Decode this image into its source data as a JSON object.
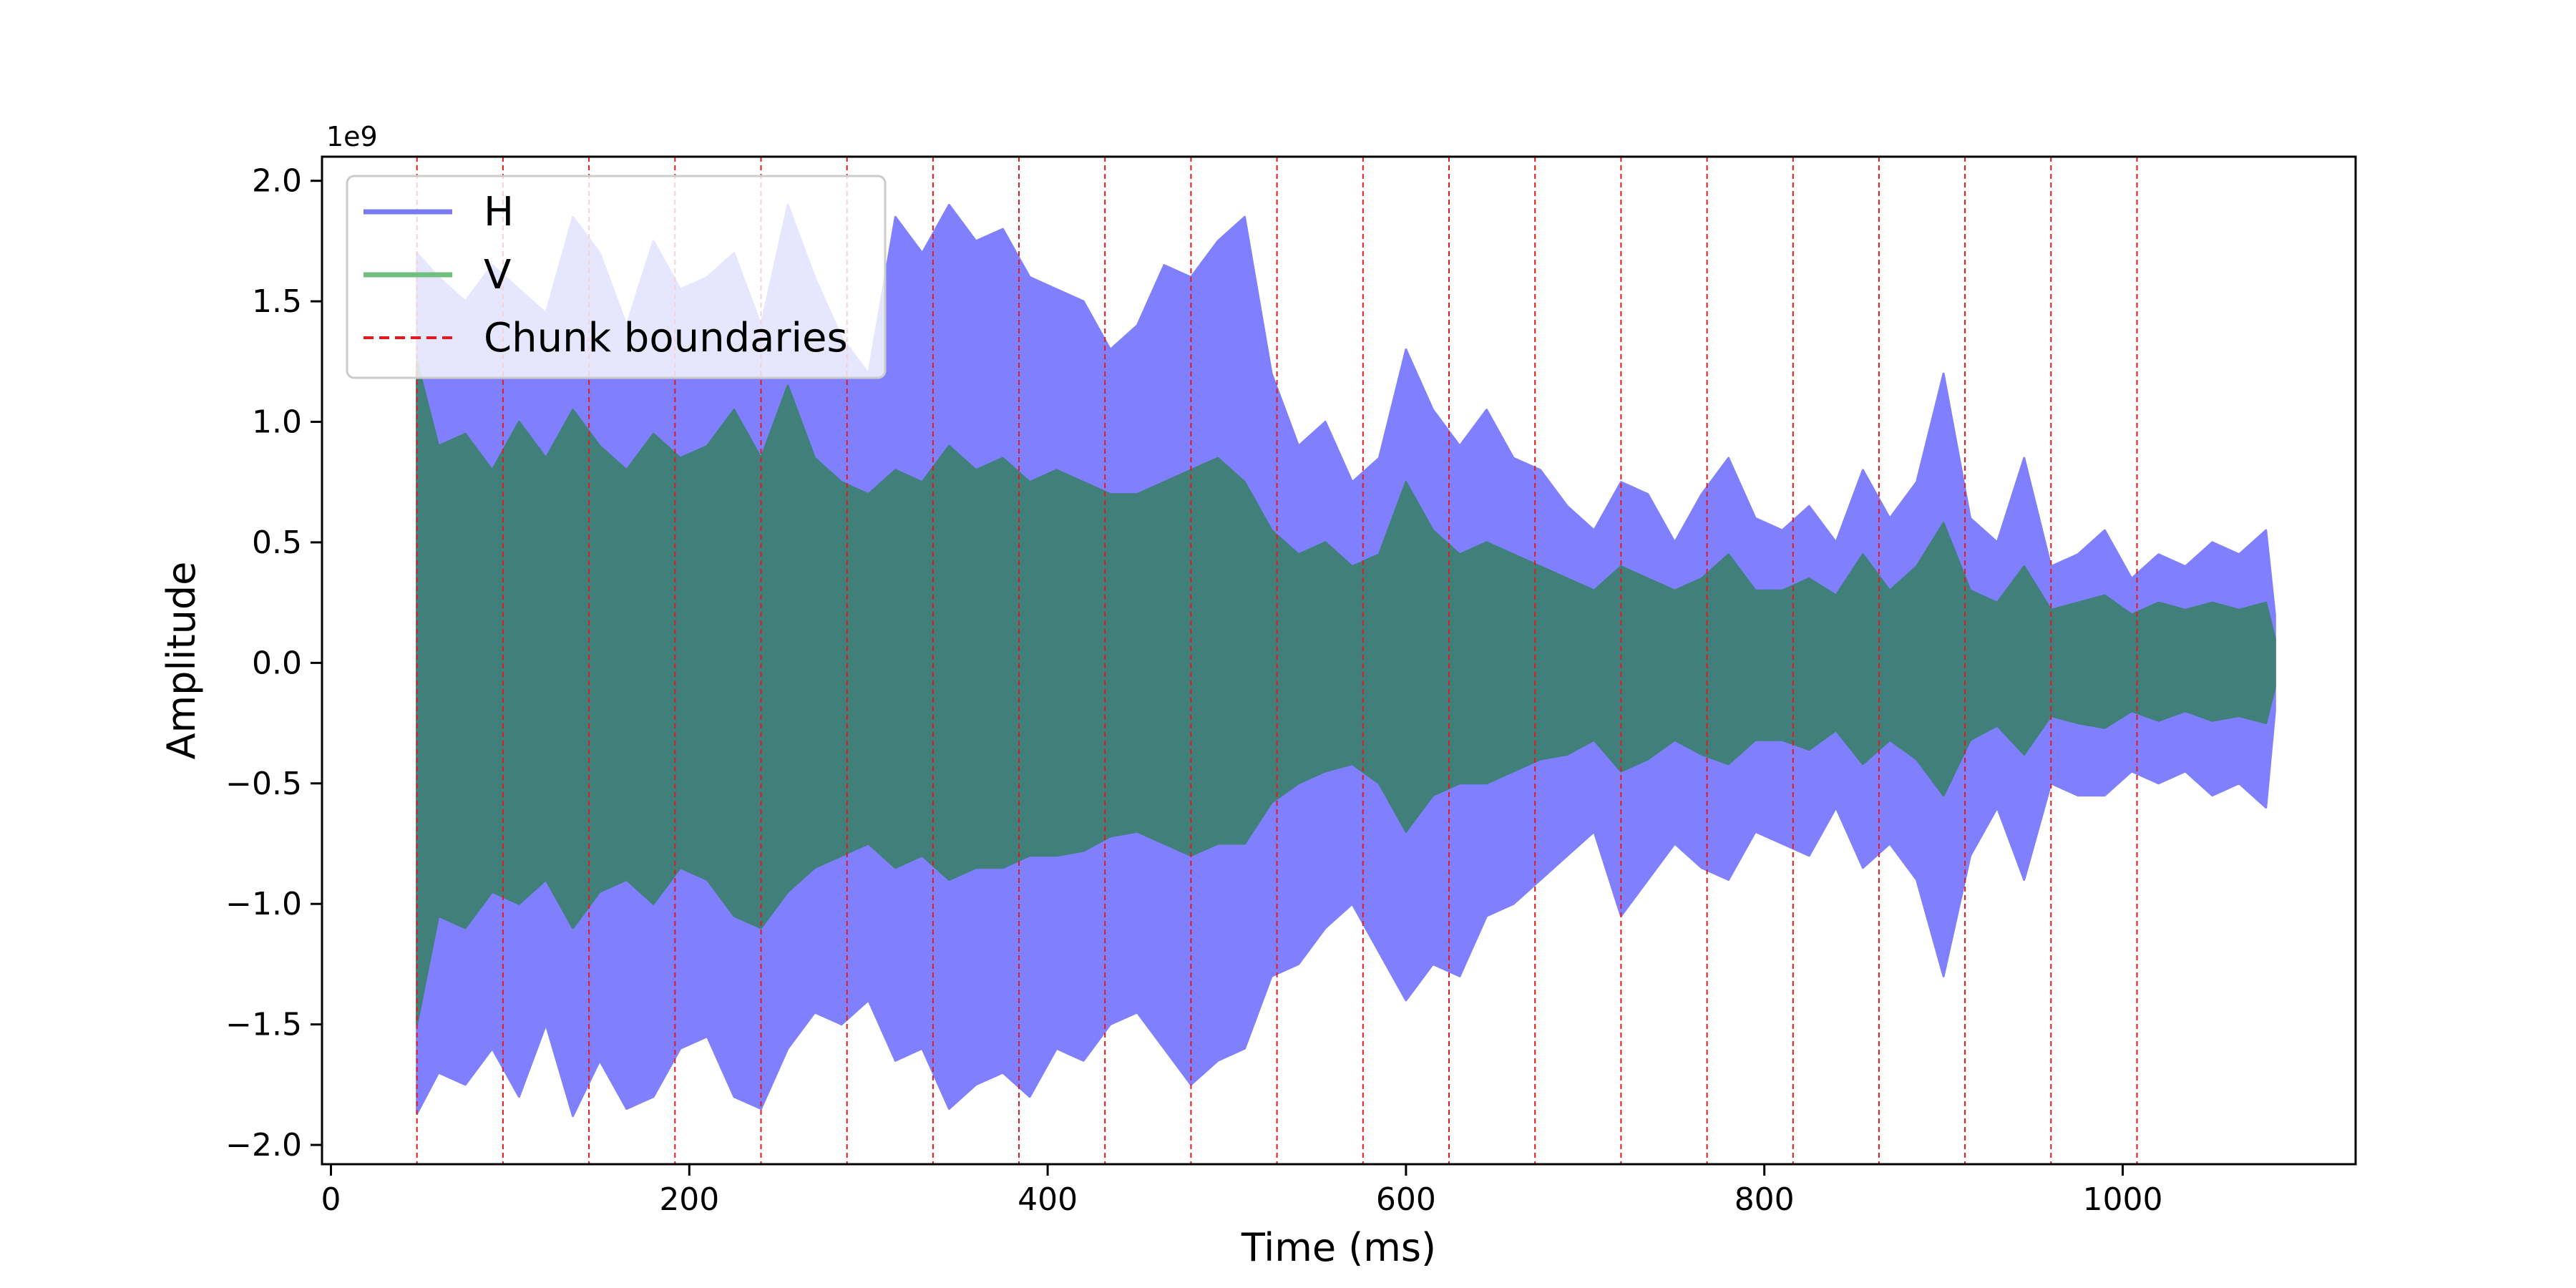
{
  "chart_data": {
    "type": "line",
    "xlabel": "Time (ms)",
    "ylabel": "Amplitude",
    "y_offset_label": "1e9",
    "xlim": [
      -5,
      1130
    ],
    "ylim": [
      -2.08,
      2.1
    ],
    "y_scale_factor": 1000000000,
    "x_ticks": [
      0,
      200,
      400,
      600,
      800,
      1000
    ],
    "x_tick_labels": [
      "0",
      "200",
      "400",
      "600",
      "800",
      "1000"
    ],
    "y_ticks": [
      2.0,
      1.5,
      1.0,
      0.5,
      0.0,
      -0.5,
      -1.0,
      -1.5,
      -2.0
    ],
    "y_tick_labels": [
      "2.0",
      "1.5",
      "1.0",
      "0.5",
      "0.0",
      "−0.5",
      "−1.0",
      "−1.5",
      "−2.0"
    ],
    "grid": false,
    "legend_position": "top-left",
    "series": [
      {
        "name": "H",
        "color": "#8080ff",
        "line_color": "#7b7bf0",
        "style": "solid",
        "envelope_x": [
          48,
          60,
          75,
          90,
          105,
          120,
          135,
          150,
          165,
          180,
          195,
          210,
          225,
          240,
          255,
          270,
          285,
          300,
          315,
          330,
          345,
          360,
          375,
          390,
          405,
          420,
          435,
          450,
          465,
          480,
          495,
          510,
          525,
          540,
          555,
          570,
          585,
          600,
          615,
          630,
          645,
          660,
          675,
          690,
          705,
          720,
          735,
          750,
          765,
          780,
          795,
          810,
          825,
          840,
          855,
          870,
          885,
          900,
          915,
          930,
          945,
          960,
          975,
          990,
          1005,
          1020,
          1035,
          1050,
          1065,
          1080,
          1085
        ],
        "envelope_upper": [
          1.7,
          1.6,
          1.5,
          1.65,
          1.55,
          1.45,
          1.85,
          1.7,
          1.4,
          1.75,
          1.55,
          1.6,
          1.7,
          1.4,
          1.9,
          1.6,
          1.35,
          1.2,
          1.85,
          1.7,
          1.9,
          1.75,
          1.8,
          1.6,
          1.55,
          1.5,
          1.3,
          1.4,
          1.65,
          1.6,
          1.75,
          1.85,
          1.2,
          0.9,
          1.0,
          0.75,
          0.85,
          1.3,
          1.05,
          0.9,
          1.05,
          0.85,
          0.8,
          0.65,
          0.55,
          0.75,
          0.7,
          0.5,
          0.7,
          0.85,
          0.6,
          0.55,
          0.65,
          0.5,
          0.8,
          0.6,
          0.75,
          1.2,
          0.6,
          0.5,
          0.85,
          0.4,
          0.45,
          0.55,
          0.35,
          0.45,
          0.4,
          0.5,
          0.45,
          0.55,
          0.2
        ],
        "envelope_lower": [
          -1.87,
          -1.7,
          -1.75,
          -1.6,
          -1.8,
          -1.5,
          -1.88,
          -1.65,
          -1.85,
          -1.8,
          -1.6,
          -1.55,
          -1.8,
          -1.85,
          -1.6,
          -1.45,
          -1.5,
          -1.4,
          -1.65,
          -1.6,
          -1.85,
          -1.75,
          -1.7,
          -1.8,
          -1.6,
          -1.65,
          -1.5,
          -1.45,
          -1.6,
          -1.75,
          -1.65,
          -1.6,
          -1.3,
          -1.25,
          -1.1,
          -1.0,
          -1.2,
          -1.4,
          -1.25,
          -1.3,
          -1.05,
          -1.0,
          -0.9,
          -0.8,
          -0.7,
          -1.05,
          -0.9,
          -0.75,
          -0.85,
          -0.9,
          -0.7,
          -0.75,
          -0.8,
          -0.6,
          -0.85,
          -0.75,
          -0.9,
          -1.3,
          -0.8,
          -0.6,
          -0.9,
          -0.5,
          -0.55,
          -0.55,
          -0.45,
          -0.5,
          -0.45,
          -0.55,
          -0.5,
          -0.6,
          -0.2
        ]
      },
      {
        "name": "V",
        "color": "#41807a",
        "line_color": "#6fbf7f",
        "style": "solid",
        "envelope_x": [
          48,
          60,
          75,
          90,
          105,
          120,
          135,
          150,
          165,
          180,
          195,
          210,
          225,
          240,
          255,
          270,
          285,
          300,
          315,
          330,
          345,
          360,
          375,
          390,
          405,
          420,
          435,
          450,
          465,
          480,
          495,
          510,
          525,
          540,
          555,
          570,
          585,
          600,
          615,
          630,
          645,
          660,
          675,
          690,
          705,
          720,
          735,
          750,
          765,
          780,
          795,
          810,
          825,
          840,
          855,
          870,
          885,
          900,
          915,
          930,
          945,
          960,
          975,
          990,
          1005,
          1020,
          1035,
          1050,
          1065,
          1080,
          1085
        ],
        "envelope_upper": [
          1.25,
          0.9,
          0.95,
          0.8,
          1.0,
          0.85,
          1.05,
          0.9,
          0.8,
          0.95,
          0.85,
          0.9,
          1.05,
          0.85,
          1.15,
          0.85,
          0.75,
          0.7,
          0.8,
          0.75,
          0.9,
          0.8,
          0.85,
          0.75,
          0.8,
          0.75,
          0.7,
          0.7,
          0.75,
          0.8,
          0.85,
          0.75,
          0.55,
          0.45,
          0.5,
          0.4,
          0.45,
          0.75,
          0.55,
          0.45,
          0.5,
          0.45,
          0.4,
          0.35,
          0.3,
          0.4,
          0.35,
          0.3,
          0.35,
          0.45,
          0.3,
          0.3,
          0.35,
          0.28,
          0.45,
          0.3,
          0.4,
          0.58,
          0.3,
          0.25,
          0.4,
          0.22,
          0.25,
          0.28,
          0.2,
          0.25,
          0.22,
          0.25,
          0.22,
          0.25,
          0.1
        ],
        "envelope_lower": [
          -1.5,
          -1.05,
          -1.1,
          -0.95,
          -1.0,
          -0.9,
          -1.1,
          -0.95,
          -0.9,
          -1.0,
          -0.85,
          -0.9,
          -1.05,
          -1.1,
          -0.95,
          -0.85,
          -0.8,
          -0.75,
          -0.85,
          -0.8,
          -0.9,
          -0.85,
          -0.85,
          -0.8,
          -0.8,
          -0.78,
          -0.72,
          -0.7,
          -0.75,
          -0.8,
          -0.75,
          -0.75,
          -0.58,
          -0.5,
          -0.45,
          -0.42,
          -0.5,
          -0.7,
          -0.55,
          -0.5,
          -0.5,
          -0.45,
          -0.4,
          -0.38,
          -0.32,
          -0.45,
          -0.4,
          -0.32,
          -0.38,
          -0.42,
          -0.32,
          -0.32,
          -0.36,
          -0.28,
          -0.42,
          -0.32,
          -0.4,
          -0.55,
          -0.32,
          -0.26,
          -0.38,
          -0.22,
          -0.25,
          -0.27,
          -0.2,
          -0.24,
          -0.2,
          -0.24,
          -0.22,
          -0.25,
          -0.1
        ]
      },
      {
        "name": "Chunk boundaries",
        "color": "#e31a1c",
        "style": "dashed",
        "x_values": [
          48,
          96,
          144,
          192,
          240,
          288,
          336,
          384,
          432,
          480,
          528,
          576,
          624,
          672,
          720,
          768,
          816,
          864,
          912,
          960,
          1008
        ]
      }
    ]
  }
}
